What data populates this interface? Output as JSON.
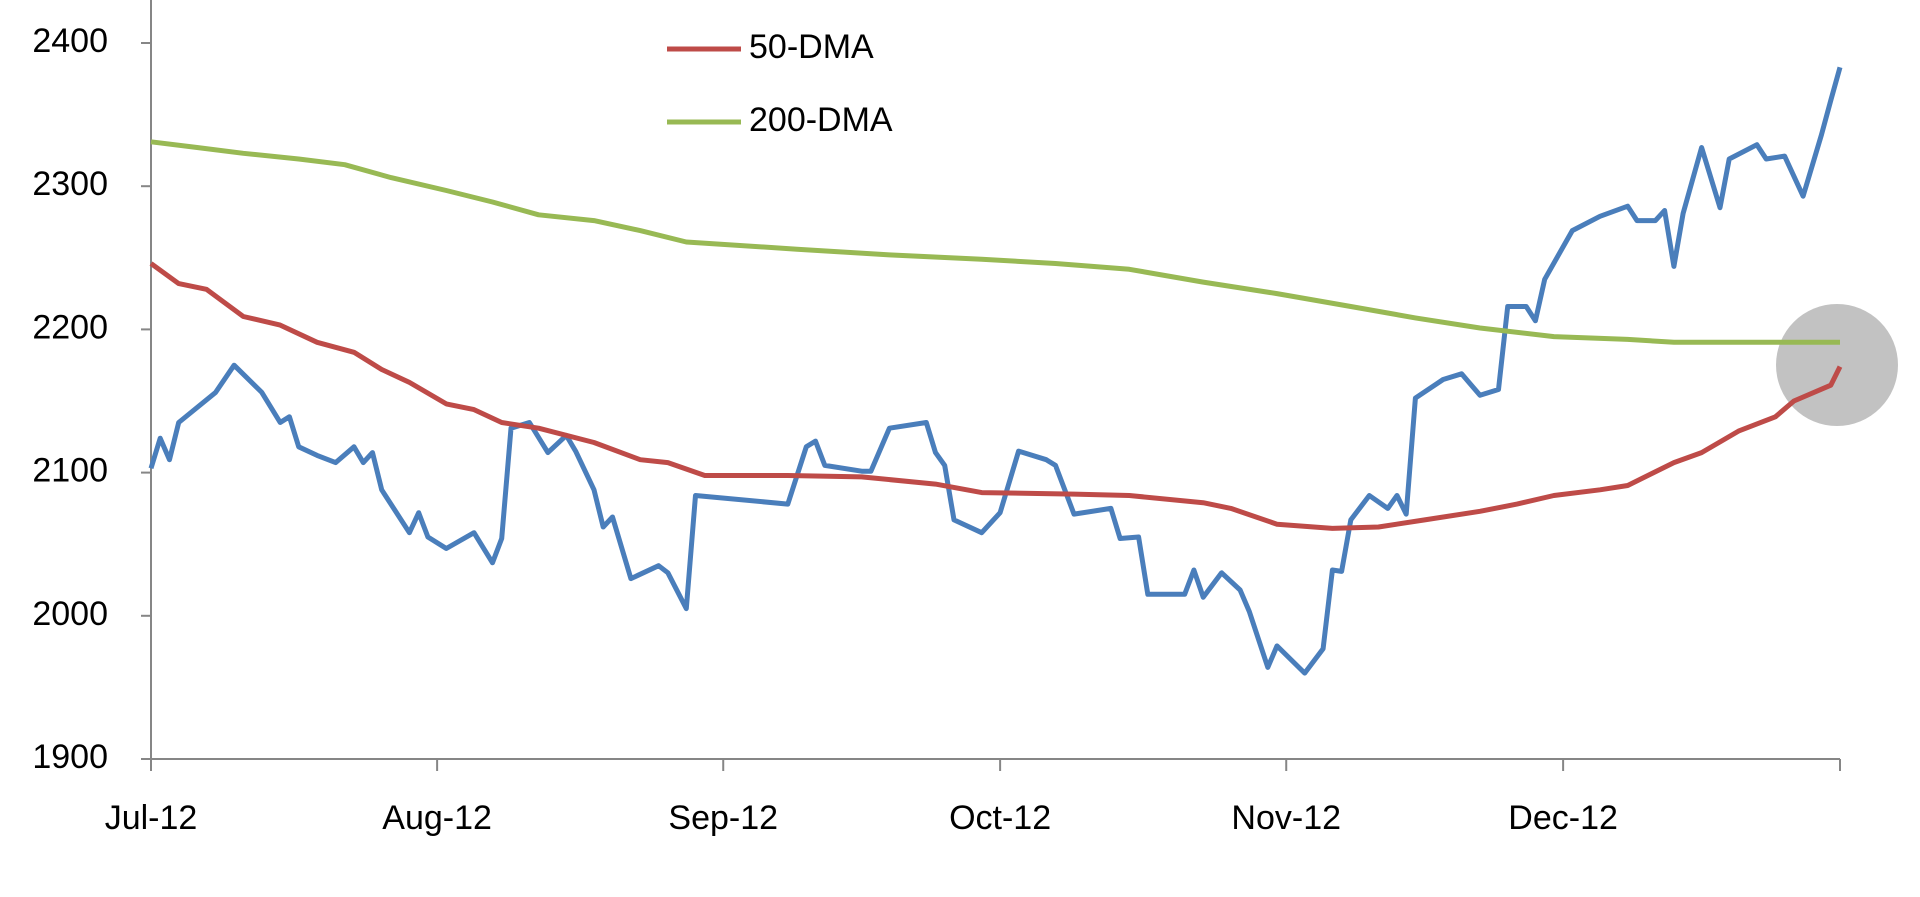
{
  "chart_data": {
    "type": "line",
    "xlim": [
      0,
      183
    ],
    "xticks": [
      {
        "value": 0,
        "label": "Jul-12"
      },
      {
        "value": 31,
        "label": "Aug-12"
      },
      {
        "value": 62,
        "label": "Sep-12"
      },
      {
        "value": 92,
        "label": "Oct-12"
      },
      {
        "value": 123,
        "label": "Nov-12"
      },
      {
        "value": 153,
        "label": "Dec-12"
      }
    ],
    "ylim": [
      1900,
      2400
    ],
    "yticks": [
      1900,
      2000,
      2100,
      2200,
      2300,
      2400
    ],
    "grid": false,
    "legend": "top",
    "series": [
      {
        "color": "#4a7ebb",
        "x": [
          0,
          1,
          2,
          3,
          7,
          9,
          12,
          14,
          15,
          16,
          18,
          20,
          22,
          23,
          24,
          25,
          28,
          29,
          30,
          32,
          35,
          37,
          38,
          39,
          41,
          43,
          45,
          46,
          48,
          49,
          50,
          52,
          55,
          56,
          58,
          59,
          69,
          71,
          72,
          73,
          77,
          78,
          80,
          84,
          85,
          86,
          87,
          90,
          92,
          94,
          97,
          98,
          100,
          104,
          105,
          107,
          108,
          112,
          113,
          114,
          116,
          118,
          119,
          121,
          122,
          125,
          127,
          128,
          129,
          130,
          132,
          134,
          135,
          136,
          137,
          140,
          142,
          144,
          146,
          147,
          149,
          150,
          151,
          154,
          157,
          160,
          161,
          163,
          164,
          165,
          166,
          168,
          170,
          171,
          174,
          175,
          177,
          179,
          181,
          182,
          183
        ],
        "values": [
          2103,
          2124,
          2109,
          2135,
          2156,
          2175,
          2156,
          2135,
          2139,
          2118,
          2112,
          2107,
          2118,
          2107,
          2114,
          2088,
          2058,
          2072,
          2055,
          2047,
          2058,
          2037,
          2054,
          2131,
          2135,
          2114,
          2126,
          2115,
          2088,
          2062,
          2069,
          2026,
          2035,
          2030,
          2005,
          2084,
          2078,
          2118,
          2122,
          2105,
          2101,
          2101,
          2131,
          2135,
          2114,
          2105,
          2067,
          2058,
          2072,
          2115,
          2109,
          2105,
          2071,
          2075,
          2054,
          2055,
          2015,
          2015,
          2032,
          2013,
          2030,
          2018,
          2003,
          1964,
          1979,
          1960,
          1977,
          2032,
          2031,
          2067,
          2084,
          2075,
          2084,
          2071,
          2152,
          2165,
          2169,
          2154,
          2158,
          2216,
          2216,
          2206,
          2235,
          2269,
          2279,
          2286,
          2276,
          2276,
          2283,
          2244,
          2281,
          2327,
          2285,
          2319,
          2329,
          2319,
          2321,
          2293,
          2336,
          2360,
          2383
        ]
      },
      {
        "name": "50-DMA",
        "color": "#be4b48",
        "x": [
          0,
          3,
          6,
          10,
          14,
          18,
          22,
          25,
          28,
          32,
          35,
          38,
          42,
          48,
          53,
          56,
          60,
          69,
          77,
          85,
          90,
          100,
          106,
          114,
          117,
          122,
          128,
          133,
          138,
          144,
          148,
          152,
          157,
          160,
          165,
          168,
          172,
          176,
          178,
          182,
          183
        ],
        "values": [
          2246,
          2232,
          2228,
          2209,
          2203,
          2191,
          2184,
          2172,
          2163,
          2148,
          2144,
          2135,
          2131,
          2121,
          2109,
          2107,
          2098,
          2098,
          2097,
          2092,
          2086,
          2085,
          2084,
          2079,
          2075,
          2064,
          2061,
          2062,
          2067,
          2073,
          2078,
          2084,
          2088,
          2091,
          2107,
          2114,
          2129,
          2139,
          2150,
          2161,
          2174
        ]
      },
      {
        "name": "200-DMA",
        "color": "#98b954",
        "x": [
          0,
          5,
          10,
          16,
          21,
          26,
          32,
          37,
          42,
          48,
          53,
          58,
          70,
          80,
          90,
          98,
          106,
          114,
          122,
          130,
          137,
          144,
          152,
          160,
          165,
          183
        ],
        "values": [
          2331,
          2327,
          2323,
          2319,
          2315,
          2306,
          2297,
          2289,
          2280,
          2276,
          2269,
          2261,
          2256,
          2252,
          2249,
          2246,
          2242,
          2233,
          2225,
          2216,
          2208,
          2201,
          2195,
          2193,
          2191,
          2191
        ]
      }
    ]
  }
}
